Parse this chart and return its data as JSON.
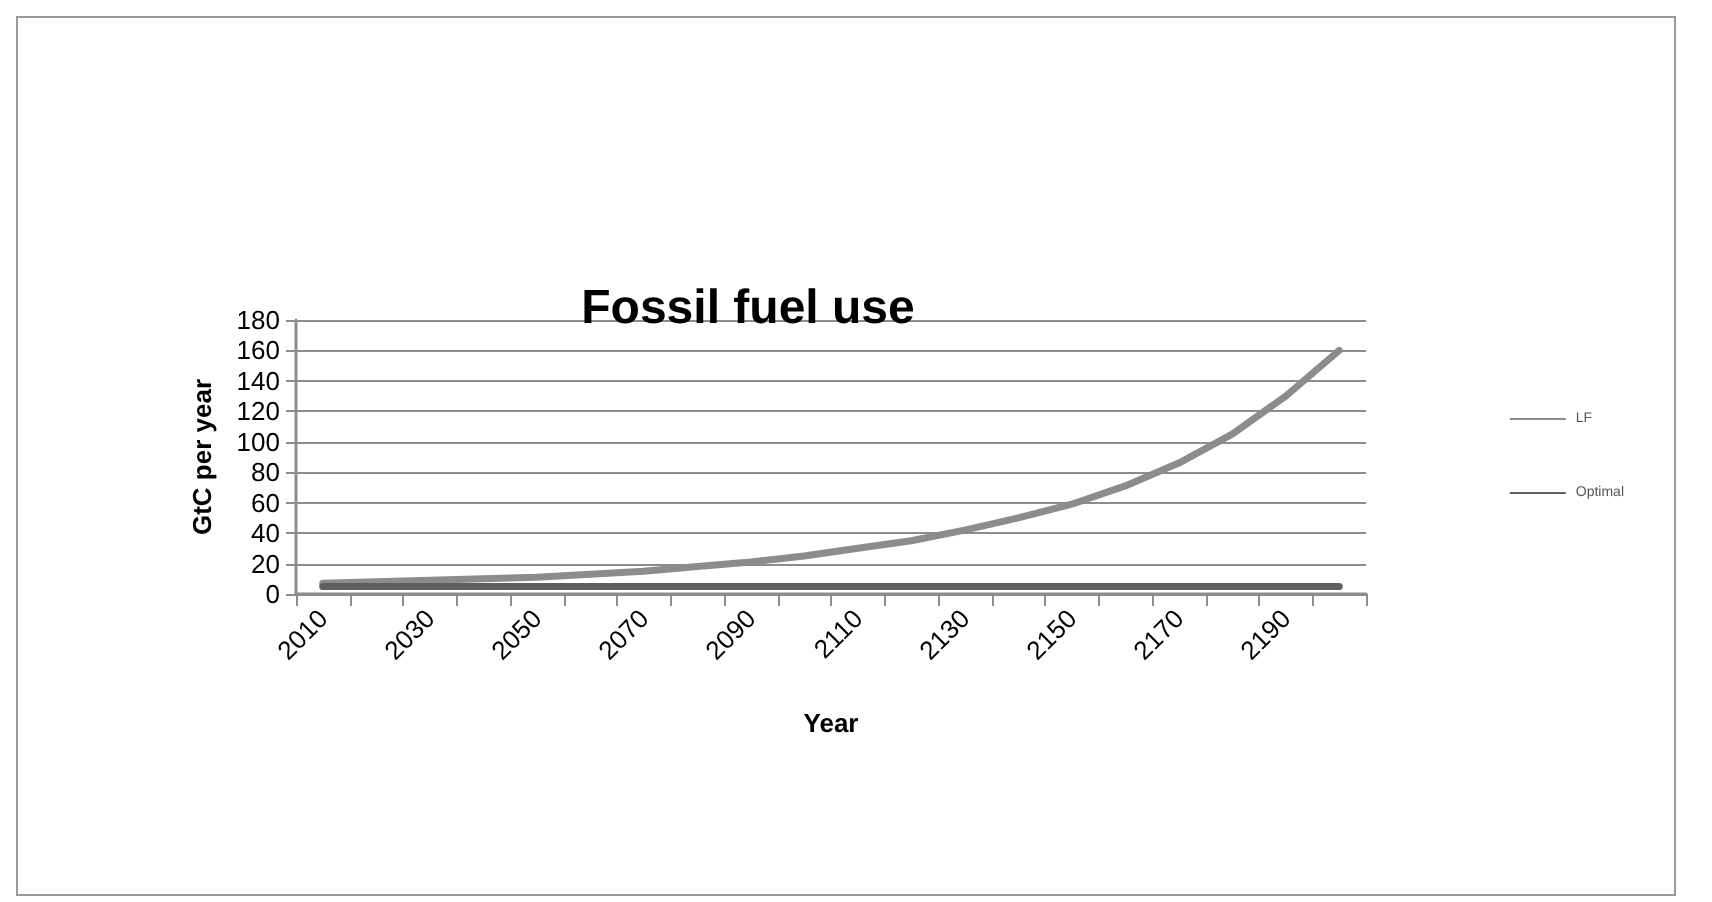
{
  "chart_data": {
    "type": "line",
    "title": "Fossil fuel use",
    "xlabel": "Year",
    "ylabel": "GtC per year",
    "categories": [
      "2010",
      null,
      "2030",
      null,
      "2050",
      null,
      "2070",
      null,
      "2090",
      null,
      "2110",
      null,
      "2130",
      null,
      "2150",
      null,
      "2170",
      null,
      "2190",
      null
    ],
    "series": [
      {
        "name": "LF",
        "color": "#8c8c8c",
        "values": [
          7,
          8,
          9,
          10,
          11,
          13,
          15,
          18,
          21,
          25,
          30,
          35,
          42,
          50,
          59,
          71,
          86,
          105,
          130,
          160
        ]
      },
      {
        "name": "Optimal",
        "color": "#5f5f5f",
        "values": [
          5,
          5,
          5,
          5,
          5,
          5,
          5,
          5,
          5,
          5,
          5,
          5,
          5,
          5,
          5,
          5,
          5,
          5,
          5,
          5
        ]
      }
    ],
    "ylim": [
      0,
      180
    ],
    "yticks": [
      0,
      20,
      40,
      60,
      80,
      100,
      120,
      140,
      160,
      180
    ],
    "grid": "y",
    "legend": "right",
    "marker": "none",
    "line_style": "solid"
  }
}
